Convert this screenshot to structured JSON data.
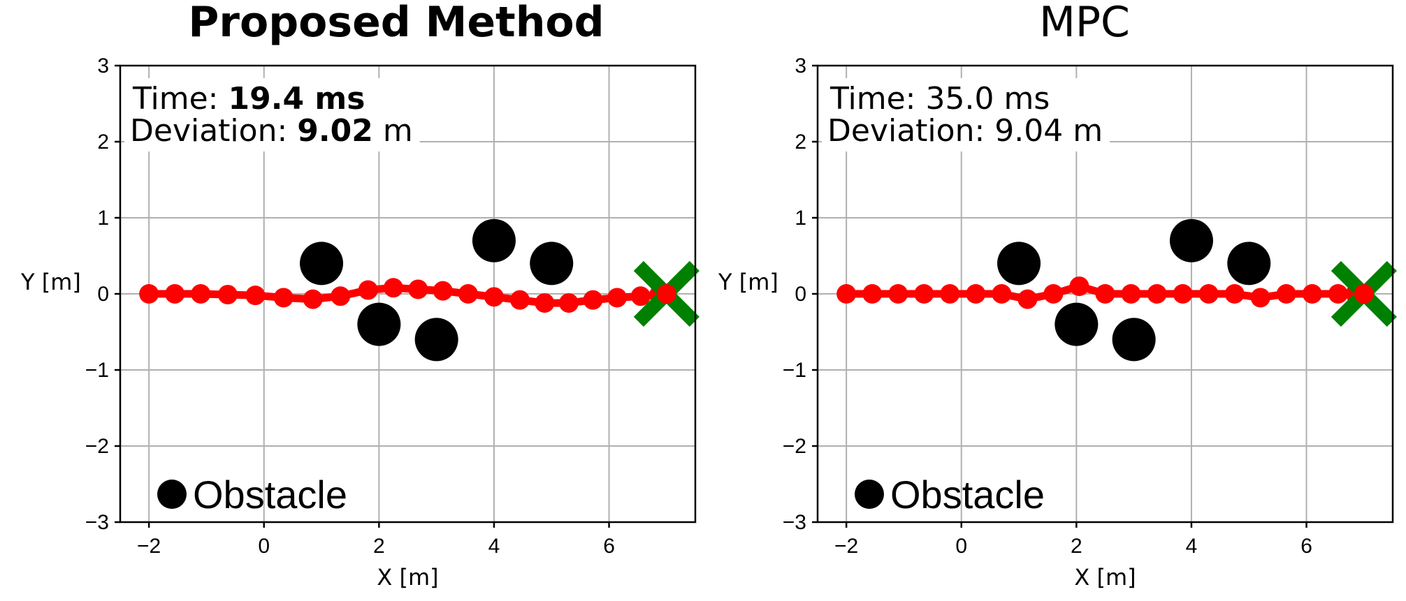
{
  "chart_data": [
    {
      "type": "scatter",
      "title": "Proposed Method",
      "title_bold": true,
      "xlabel": "X [m]",
      "ylabel": "Y [m]",
      "xlim": [
        -2.5,
        7.5
      ],
      "ylim": [
        -3,
        3
      ],
      "xticks": [
        -2,
        0,
        2,
        4,
        6
      ],
      "yticks": [
        -3,
        -2,
        -1,
        0,
        1,
        2,
        3
      ],
      "xtick_labels": [
        "−2",
        "0",
        "2",
        "4",
        "6"
      ],
      "ytick_labels": [
        "−3",
        "−2",
        "−1",
        "0",
        "1",
        "2",
        "3"
      ],
      "grid": true,
      "annotation": {
        "time_label": "Time: ",
        "time_value": "19.4 ms",
        "deviation_label": "Deviation: ",
        "deviation_value": "9.02",
        "deviation_unit": " m",
        "values_bold": true
      },
      "legend": {
        "label": "Obstacle",
        "placement": "lower-left"
      },
      "obstacles": [
        {
          "x": 1,
          "y": 0.4
        },
        {
          "x": 2,
          "y": -0.4
        },
        {
          "x": 3,
          "y": -0.6
        },
        {
          "x": 4,
          "y": 0.7
        },
        {
          "x": 5,
          "y": 0.4
        }
      ],
      "goal": {
        "x": 7,
        "y": 0,
        "color": "#008000",
        "marker": "x"
      },
      "trajectory": {
        "color": "#ff0000",
        "points": [
          [
            -2.0,
            0.0
          ],
          [
            -1.55,
            0.0
          ],
          [
            -1.1,
            0.0
          ],
          [
            -0.63,
            -0.01
          ],
          [
            -0.15,
            -0.02
          ],
          [
            0.34,
            -0.05
          ],
          [
            0.85,
            -0.07
          ],
          [
            1.33,
            -0.03
          ],
          [
            1.81,
            0.05
          ],
          [
            2.25,
            0.08
          ],
          [
            2.68,
            0.06
          ],
          [
            3.11,
            0.04
          ],
          [
            3.55,
            0.0
          ],
          [
            4.0,
            -0.04
          ],
          [
            4.45,
            -0.08
          ],
          [
            4.88,
            -0.12
          ],
          [
            5.3,
            -0.12
          ],
          [
            5.72,
            -0.08
          ],
          [
            6.14,
            -0.05
          ],
          [
            6.55,
            -0.03
          ],
          [
            6.87,
            -0.01
          ],
          [
            7.0,
            0.0
          ]
        ]
      }
    },
    {
      "type": "scatter",
      "title": "MPC",
      "title_bold": false,
      "xlabel": "X [m]",
      "ylabel": "Y [m]",
      "xlim": [
        -2.5,
        7.5
      ],
      "ylim": [
        -3,
        3
      ],
      "xticks": [
        -2,
        0,
        2,
        4,
        6
      ],
      "yticks": [
        -3,
        -2,
        -1,
        0,
        1,
        2,
        3
      ],
      "xtick_labels": [
        "−2",
        "0",
        "2",
        "4",
        "6"
      ],
      "ytick_labels": [
        "−3",
        "−2",
        "−1",
        "0",
        "1",
        "2",
        "3"
      ],
      "grid": true,
      "annotation": {
        "time_label": "Time: ",
        "time_value": "35.0 ms",
        "deviation_label": "Deviation: ",
        "deviation_value": "9.04",
        "deviation_unit": " m",
        "values_bold": false
      },
      "legend": {
        "label": "Obstacle",
        "placement": "lower-left"
      },
      "obstacles": [
        {
          "x": 1,
          "y": 0.4
        },
        {
          "x": 2,
          "y": -0.4
        },
        {
          "x": 3,
          "y": -0.6
        },
        {
          "x": 4,
          "y": 0.7
        },
        {
          "x": 5,
          "y": 0.4
        }
      ],
      "goal": {
        "x": 7,
        "y": 0,
        "color": "#008000",
        "marker": "x"
      },
      "trajectory": {
        "color": "#ff0000",
        "points": [
          [
            -2.0,
            0.0
          ],
          [
            -1.55,
            0.0
          ],
          [
            -1.1,
            0.0
          ],
          [
            -0.65,
            0.0
          ],
          [
            -0.2,
            0.0
          ],
          [
            0.25,
            0.0
          ],
          [
            0.7,
            0.0
          ],
          [
            1.15,
            -0.07
          ],
          [
            1.6,
            0.0
          ],
          [
            2.05,
            0.1
          ],
          [
            2.5,
            0.0
          ],
          [
            2.95,
            0.0
          ],
          [
            3.4,
            0.0
          ],
          [
            3.85,
            0.0
          ],
          [
            4.3,
            0.0
          ],
          [
            4.75,
            0.0
          ],
          [
            5.2,
            -0.05
          ],
          [
            5.65,
            0.0
          ],
          [
            6.1,
            0.0
          ],
          [
            6.55,
            0.0
          ],
          [
            6.85,
            0.0
          ],
          [
            7.0,
            0.0
          ]
        ]
      }
    }
  ]
}
